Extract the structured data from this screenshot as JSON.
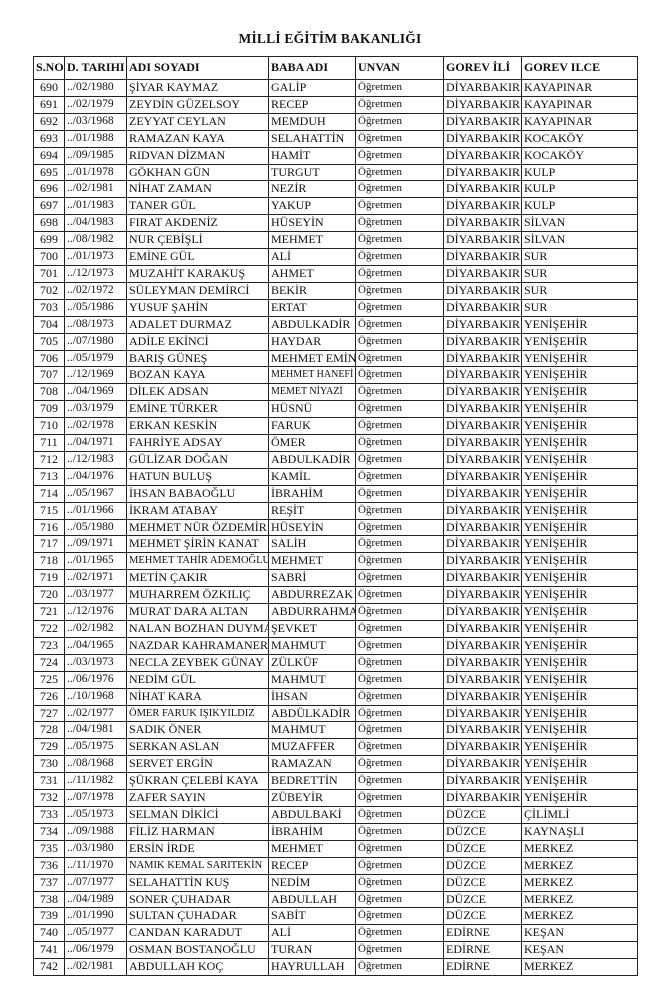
{
  "title": "MİLLİ EĞİTİM BAKANLIĞI",
  "table": {
    "headers": [
      "S.NO",
      "D. TARIHI",
      "ADI SOYADI",
      "BABA ADI",
      "UNVAN",
      "GOREV İLİ",
      "GOREV ILCE"
    ],
    "rows": [
      [
        "690",
        "../02/1980",
        "ŞİYAR KAYMAZ",
        "GALİP",
        "Öğretmen",
        "DİYARBAKIR",
        "KAYAPINAR"
      ],
      [
        "691",
        "../02/1979",
        "ZEYDİN GÜZELSOY",
        "RECEP",
        "Öğretmen",
        "DİYARBAKIR",
        "KAYAPINAR"
      ],
      [
        "692",
        "../03/1968",
        "ZEYYAT CEYLAN",
        "MEMDUH",
        "Öğretmen",
        "DİYARBAKIR",
        "KAYAPINAR"
      ],
      [
        "693",
        "../01/1988",
        "RAMAZAN KAYA",
        "SELAHATTİN",
        "Öğretmen",
        "DİYARBAKIR",
        "KOCAKÖY"
      ],
      [
        "694",
        "../09/1985",
        "RIDVAN DİZMAN",
        "HAMİT",
        "Öğretmen",
        "DİYARBAKIR",
        "KOCAKÖY"
      ],
      [
        "695",
        "../01/1978",
        "GÖKHAN GÜN",
        "TURGUT",
        "Öğretmen",
        "DİYARBAKIR",
        "KULP"
      ],
      [
        "696",
        "../02/1981",
        "NİHAT ZAMAN",
        "NEZİR",
        "Öğretmen",
        "DİYARBAKIR",
        "KULP"
      ],
      [
        "697",
        "../01/1983",
        "TANER GÜL",
        "YAKUP",
        "Öğretmen",
        "DİYARBAKIR",
        "KULP"
      ],
      [
        "698",
        "../04/1983",
        "FIRAT AKDENİZ",
        "HÜSEYİN",
        "Öğretmen",
        "DİYARBAKIR",
        "SİLVAN"
      ],
      [
        "699",
        "../08/1982",
        "NUR ÇEBİŞLİ",
        "MEHMET",
        "Öğretmen",
        "DİYARBAKIR",
        "SİLVAN"
      ],
      [
        "700",
        "../01/1973",
        "EMİNE GÜL",
        "ALİ",
        "Öğretmen",
        "DİYARBAKIR",
        "SUR"
      ],
      [
        "701",
        "../12/1973",
        "MUZAHİT KARAKUŞ",
        "AHMET",
        "Öğretmen",
        "DİYARBAKIR",
        "SUR"
      ],
      [
        "702",
        "../02/1972",
        "SÜLEYMAN DEMİRCİ",
        "BEKİR",
        "Öğretmen",
        "DİYARBAKIR",
        "SUR"
      ],
      [
        "703",
        "../05/1986",
        "YUSUF ŞAHİN",
        "ERTAT",
        "Öğretmen",
        "DİYARBAKIR",
        "SUR"
      ],
      [
        "704",
        "../08/1973",
        "ADALET DURMAZ",
        "ABDULKADİR",
        "Öğretmen",
        "DİYARBAKIR",
        "YENİŞEHİR"
      ],
      [
        "705",
        "../07/1980",
        "ADİLE EKİNCİ",
        "HAYDAR",
        "Öğretmen",
        "DİYARBAKIR",
        "YENİŞEHİR"
      ],
      [
        "706",
        "../05/1979",
        "BARIŞ GÜNEŞ",
        "MEHMET EMİN",
        "Öğretmen",
        "DİYARBAKIR",
        "YENİŞEHİR"
      ],
      [
        "707",
        "../12/1969",
        "BOZAN KAYA",
        "MEHMET HANEFİ",
        "Öğretmen",
        "DİYARBAKIR",
        "YENİŞEHİR"
      ],
      [
        "708",
        "../04/1969",
        "DİLEK ADSAN",
        "MEMET NİYAZİ",
        "Öğretmen",
        "DİYARBAKIR",
        "YENİŞEHİR"
      ],
      [
        "709",
        "../03/1979",
        "EMİNE TÜRKER",
        "HÜSNÜ",
        "Öğretmen",
        "DİYARBAKIR",
        "YENİŞEHİR"
      ],
      [
        "710",
        "../02/1978",
        "ERKAN KESKİN",
        "FARUK",
        "Öğretmen",
        "DİYARBAKIR",
        "YENİŞEHİR"
      ],
      [
        "711",
        "../04/1971",
        "FAHRİYE ADSAY",
        "ÖMER",
        "Öğretmen",
        "DİYARBAKIR",
        "YENİŞEHİR"
      ],
      [
        "712",
        "../12/1983",
        "GÜLİZAR DOĞAN",
        "ABDULKADİR",
        "Öğretmen",
        "DİYARBAKIR",
        "YENİŞEHİR"
      ],
      [
        "713",
        "../04/1976",
        "HATUN BULUŞ",
        "KAMİL",
        "Öğretmen",
        "DİYARBAKIR",
        "YENİŞEHİR"
      ],
      [
        "714",
        "../05/1967",
        "İHSAN BABAOĞLU",
        "İBRAHİM",
        "Öğretmen",
        "DİYARBAKIR",
        "YENİŞEHİR"
      ],
      [
        "715",
        "../01/1966",
        "İKRAM ATABAY",
        "REŞİT",
        "Öğretmen",
        "DİYARBAKIR",
        "YENİŞEHİR"
      ],
      [
        "716",
        "../05/1980",
        "MEHMET NÜR ÖZDEMİR",
        "HÜSEYİN",
        "Öğretmen",
        "DİYARBAKIR",
        "YENİŞEHİR"
      ],
      [
        "717",
        "../09/1971",
        "MEHMET ŞİRİN KANAT",
        "SALİH",
        "Öğretmen",
        "DİYARBAKIR",
        "YENİŞEHİR"
      ],
      [
        "718",
        "../01/1965",
        "MEHMET TAHİR ADEMOĞLU",
        "MEHMET",
        "Öğretmen",
        "DİYARBAKIR",
        "YENİŞEHİR"
      ],
      [
        "719",
        "../02/1971",
        "METİN ÇAKIR",
        "SABRİ",
        "Öğretmen",
        "DİYARBAKIR",
        "YENİŞEHİR"
      ],
      [
        "720",
        "../03/1977",
        "MUHARREM ÖZKILIÇ",
        "ABDURREZAK",
        "Öğretmen",
        "DİYARBAKIR",
        "YENİŞEHİR"
      ],
      [
        "721",
        "../12/1976",
        "MURAT DARA ALTAN",
        "ABDURRAHMAN",
        "Öğretmen",
        "DİYARBAKIR",
        "YENİŞEHİR"
      ],
      [
        "722",
        "../02/1982",
        "NALAN BOZHAN DUYMAZ",
        "ŞEVKET",
        "Öğretmen",
        "DİYARBAKIR",
        "YENİŞEHİR"
      ],
      [
        "723",
        "../04/1965",
        "NAZDAR KAHRAMANER",
        "MAHMUT",
        "Öğretmen",
        "DİYARBAKIR",
        "YENİŞEHİR"
      ],
      [
        "724",
        "../03/1973",
        "NECLA ZEYBEK GÜNAY",
        "ZÜLKÜF",
        "Öğretmen",
        "DİYARBAKIR",
        "YENİŞEHİR"
      ],
      [
        "725",
        "../06/1976",
        "NEDİM GÜL",
        "MAHMUT",
        "Öğretmen",
        "DİYARBAKIR",
        "YENİŞEHİR"
      ],
      [
        "726",
        "../10/1968",
        "NİHAT KARA",
        "İHSAN",
        "Öğretmen",
        "DİYARBAKIR",
        "YENİŞEHİR"
      ],
      [
        "727",
        "../02/1977",
        "ÖMER FARUK IŞIKYILDIZ",
        "ABDÜLKADİR",
        "Öğretmen",
        "DİYARBAKIR",
        "YENİŞEHİR"
      ],
      [
        "728",
        "../04/1981",
        "SADIK ÖNER",
        "MAHMUT",
        "Öğretmen",
        "DİYARBAKIR",
        "YENİŞEHİR"
      ],
      [
        "729",
        "../05/1975",
        "SERKAN ASLAN",
        "MUZAFFER",
        "Öğretmen",
        "DİYARBAKIR",
        "YENİŞEHİR"
      ],
      [
        "730",
        "../08/1968",
        "SERVET ERGİN",
        "RAMAZAN",
        "Öğretmen",
        "DİYARBAKIR",
        "YENİŞEHİR"
      ],
      [
        "731",
        "../11/1982",
        "ŞÜKRAN ÇELEBİ KAYA",
        "BEDRETTİN",
        "Öğretmen",
        "DİYARBAKIR",
        "YENİŞEHİR"
      ],
      [
        "732",
        "../07/1978",
        "ZAFER SAYIN",
        "ZÜBEYİR",
        "Öğretmen",
        "DİYARBAKIR",
        "YENİŞEHİR"
      ],
      [
        "733",
        "../05/1973",
        "SELMAN DİKİCİ",
        "ABDULBAKİ",
        "Öğretmen",
        "DÜZCE",
        "ÇİLİMLİ"
      ],
      [
        "734",
        "../09/1988",
        "FİLİZ HARMAN",
        "İBRAHİM",
        "Öğretmen",
        "DÜZCE",
        "KAYNAŞLI"
      ],
      [
        "735",
        "../03/1980",
        "ERSİN İRDE",
        "MEHMET",
        "Öğretmen",
        "DÜZCE",
        "MERKEZ"
      ],
      [
        "736",
        "../11/1970",
        "NAMIK KEMAL SARITEKİN",
        "RECEP",
        "Öğretmen",
        "DÜZCE",
        "MERKEZ"
      ],
      [
        "737",
        "../07/1977",
        "SELAHATTİN KUŞ",
        "NEDİM",
        "Öğretmen",
        "DÜZCE",
        "MERKEZ"
      ],
      [
        "738",
        "../04/1989",
        "SONER ÇUHADAR",
        "ABDULLAH",
        "Öğretmen",
        "DÜZCE",
        "MERKEZ"
      ],
      [
        "739",
        "../01/1990",
        "SULTAN ÇUHADAR",
        "SABİT",
        "Öğretmen",
        "DÜZCE",
        "MERKEZ"
      ],
      [
        "740",
        "../05/1977",
        "CANDAN KARADUT",
        "ALİ",
        "Öğretmen",
        "EDİRNE",
        "KEŞAN"
      ],
      [
        "741",
        "../06/1979",
        "OSMAN BOSTANOĞLU",
        "TURAN",
        "Öğretmen",
        "EDİRNE",
        "KEŞAN"
      ],
      [
        "742",
        "../02/1981",
        "ABDULLAH KOÇ",
        "HAYRULLAH",
        "Öğretmen",
        "EDİRNE",
        "MERKEZ"
      ]
    ]
  }
}
